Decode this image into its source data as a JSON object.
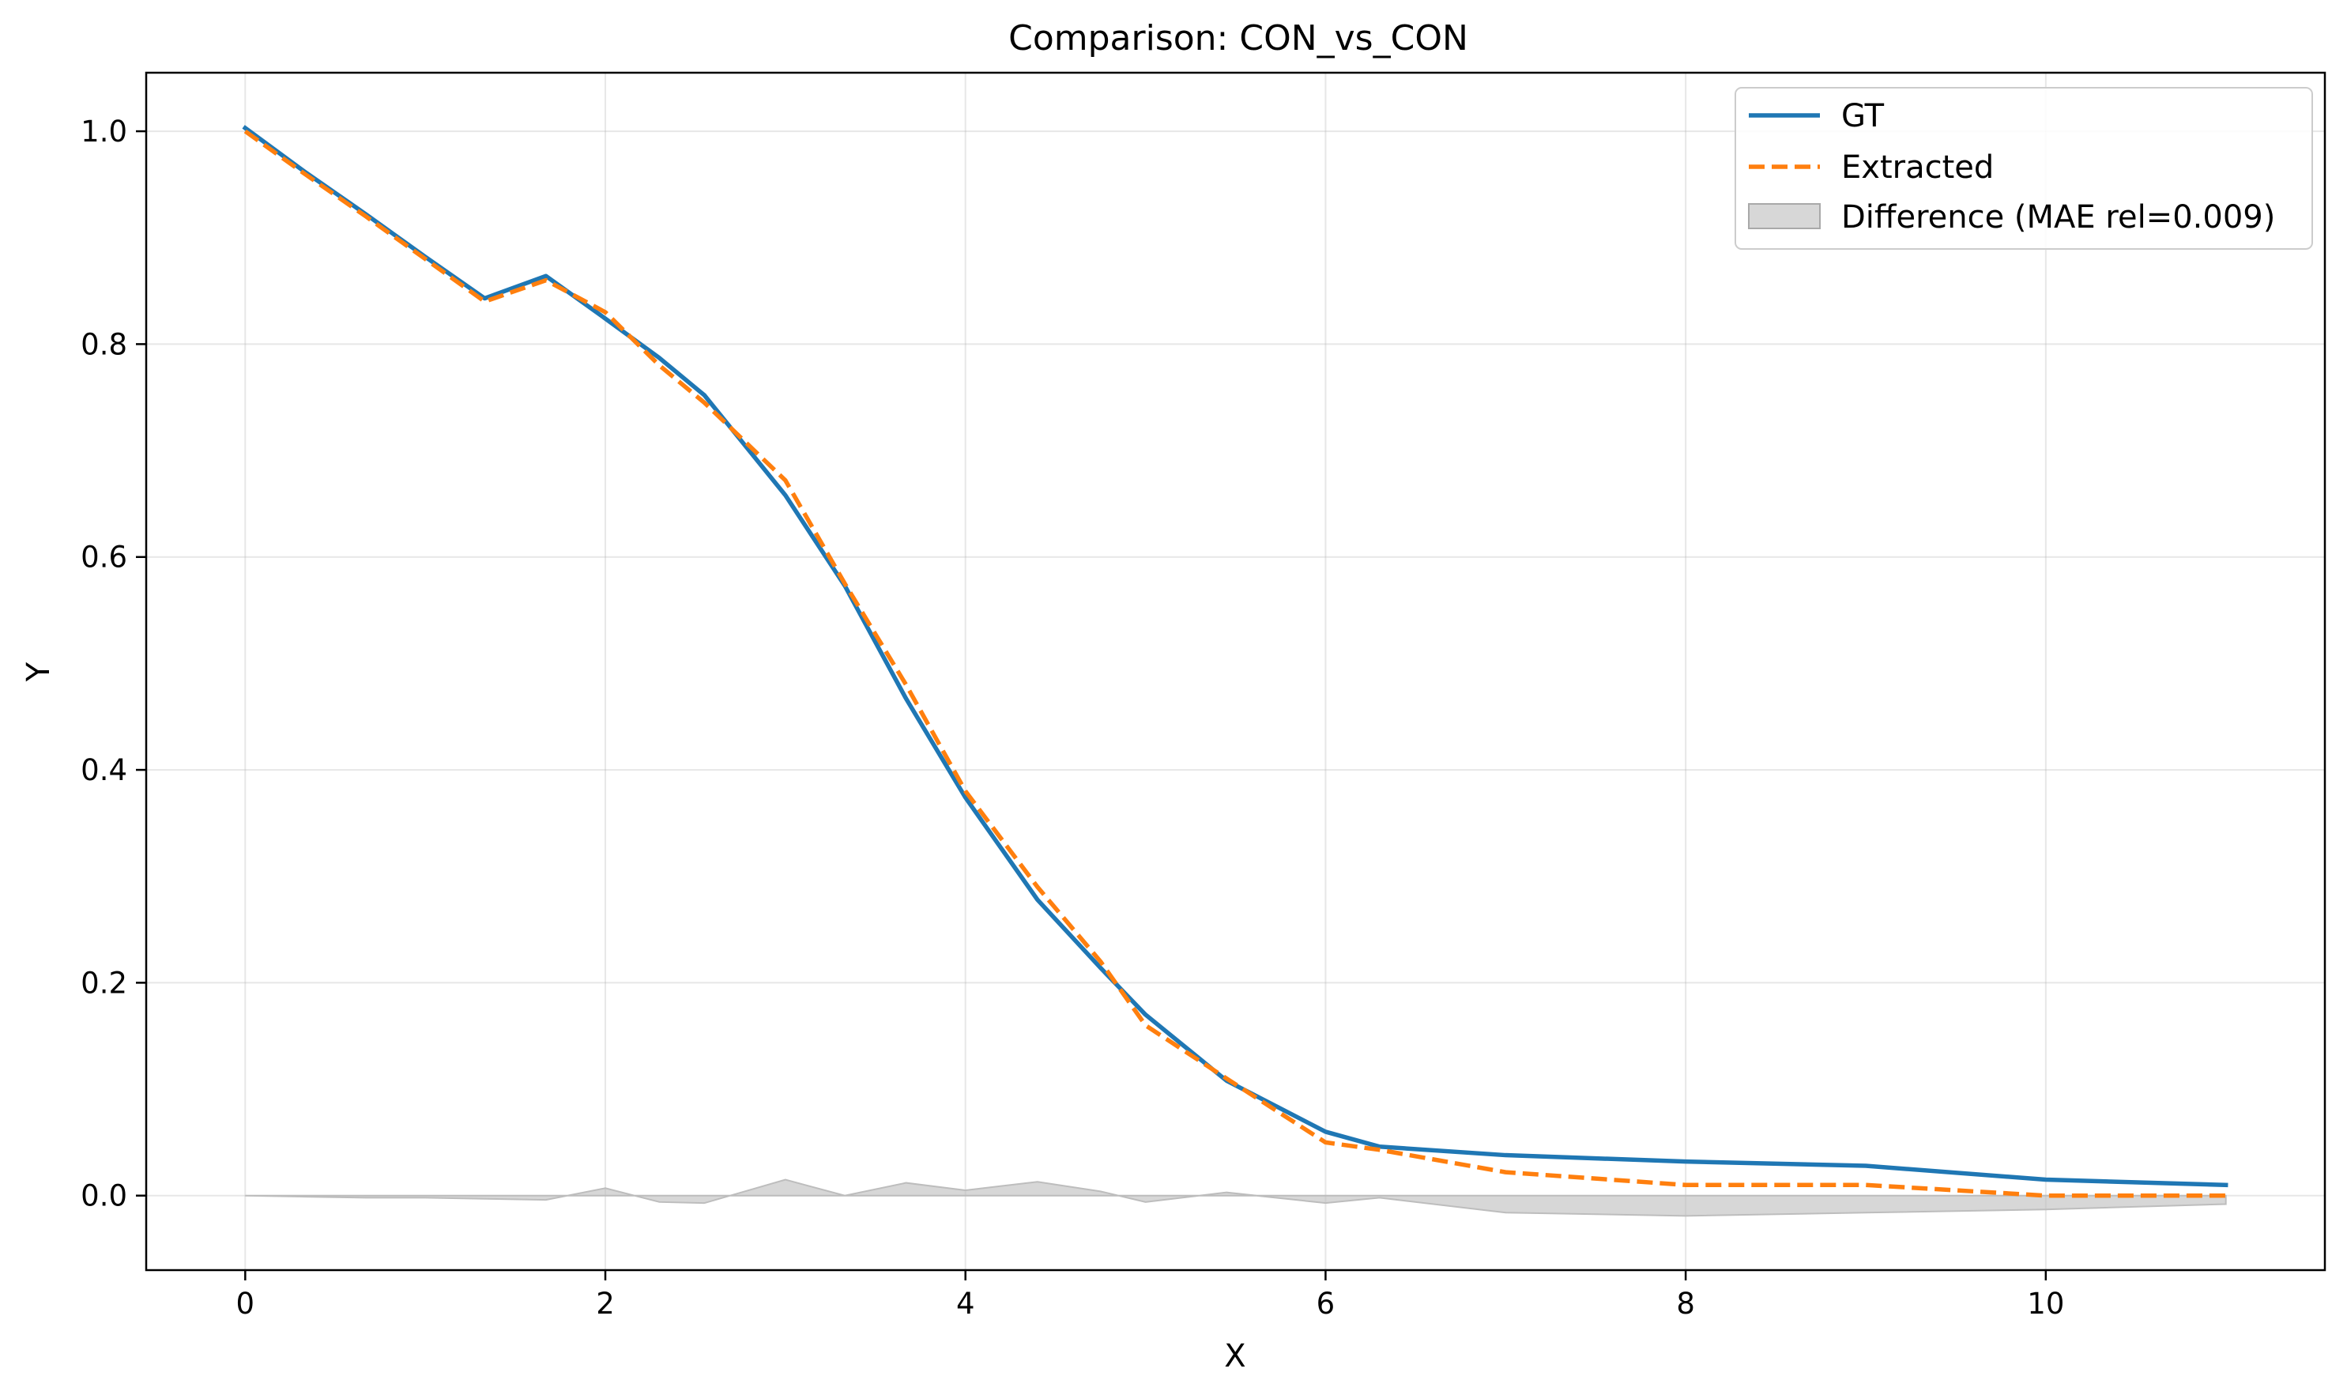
{
  "chart_data": {
    "type": "line",
    "title": "Comparison: CON_vs_CON",
    "xlabel": "X",
    "ylabel": "Y",
    "xlim": [
      -0.55,
      11.55
    ],
    "ylim": [
      -0.07,
      1.055
    ],
    "xticks": [
      0,
      2,
      4,
      6,
      8,
      10
    ],
    "yticks": [
      0.0,
      0.2,
      0.4,
      0.6,
      0.8,
      1.0
    ],
    "grid": true,
    "legend_position": "top-right",
    "series": [
      {
        "name": "GT",
        "color": "#1f77b4",
        "style": "solid",
        "x": [
          0,
          0.33,
          0.67,
          1.0,
          1.33,
          1.67,
          2.0,
          2.3,
          2.55,
          3.0,
          3.33,
          3.67,
          4.0,
          4.4,
          4.75,
          5.0,
          5.45,
          6.0,
          6.3,
          7.0,
          8.0,
          9.0,
          10.0,
          11.0
        ],
        "y": [
          1.003,
          0.962,
          0.922,
          0.882,
          0.843,
          0.864,
          0.824,
          0.787,
          0.752,
          0.658,
          0.573,
          0.467,
          0.374,
          0.278,
          0.214,
          0.17,
          0.108,
          0.06,
          0.046,
          0.038,
          0.032,
          0.028,
          0.015,
          0.01
        ]
      },
      {
        "name": "Extracted",
        "color": "#ff7f0e",
        "style": "dashed",
        "x": [
          0,
          0.33,
          0.67,
          1.0,
          1.33,
          1.67,
          2.0,
          2.3,
          2.55,
          3.0,
          3.33,
          3.67,
          4.0,
          4.4,
          4.75,
          5.0,
          5.45,
          6.0,
          6.3,
          7.0,
          8.0,
          9.0,
          10.0,
          11.0
        ],
        "y": [
          1.0,
          0.96,
          0.92,
          0.88,
          0.84,
          0.86,
          0.83,
          0.78,
          0.745,
          0.672,
          0.575,
          0.48,
          0.38,
          0.29,
          0.22,
          0.16,
          0.11,
          0.05,
          0.043,
          0.022,
          0.01,
          0.01,
          0.0,
          0.0
        ]
      }
    ],
    "difference": {
      "name": "Difference (MAE rel=0.009)",
      "color": "#bdbdbd",
      "x": [
        0,
        0.33,
        0.67,
        1.0,
        1.33,
        1.67,
        2.0,
        2.3,
        2.55,
        3.0,
        3.33,
        3.67,
        4.0,
        4.4,
        4.75,
        5.0,
        5.45,
        6.0,
        6.3,
        7.0,
        8.0,
        9.0,
        10.0,
        11.0
      ],
      "y": [
        0.0,
        -0.001,
        -0.002,
        -0.002,
        -0.003,
        -0.004,
        0.007,
        -0.006,
        -0.007,
        0.015,
        0.0,
        0.012,
        0.005,
        0.013,
        0.004,
        -0.006,
        0.003,
        -0.007,
        -0.002,
        -0.016,
        -0.019,
        -0.016,
        -0.013,
        -0.008
      ]
    }
  }
}
